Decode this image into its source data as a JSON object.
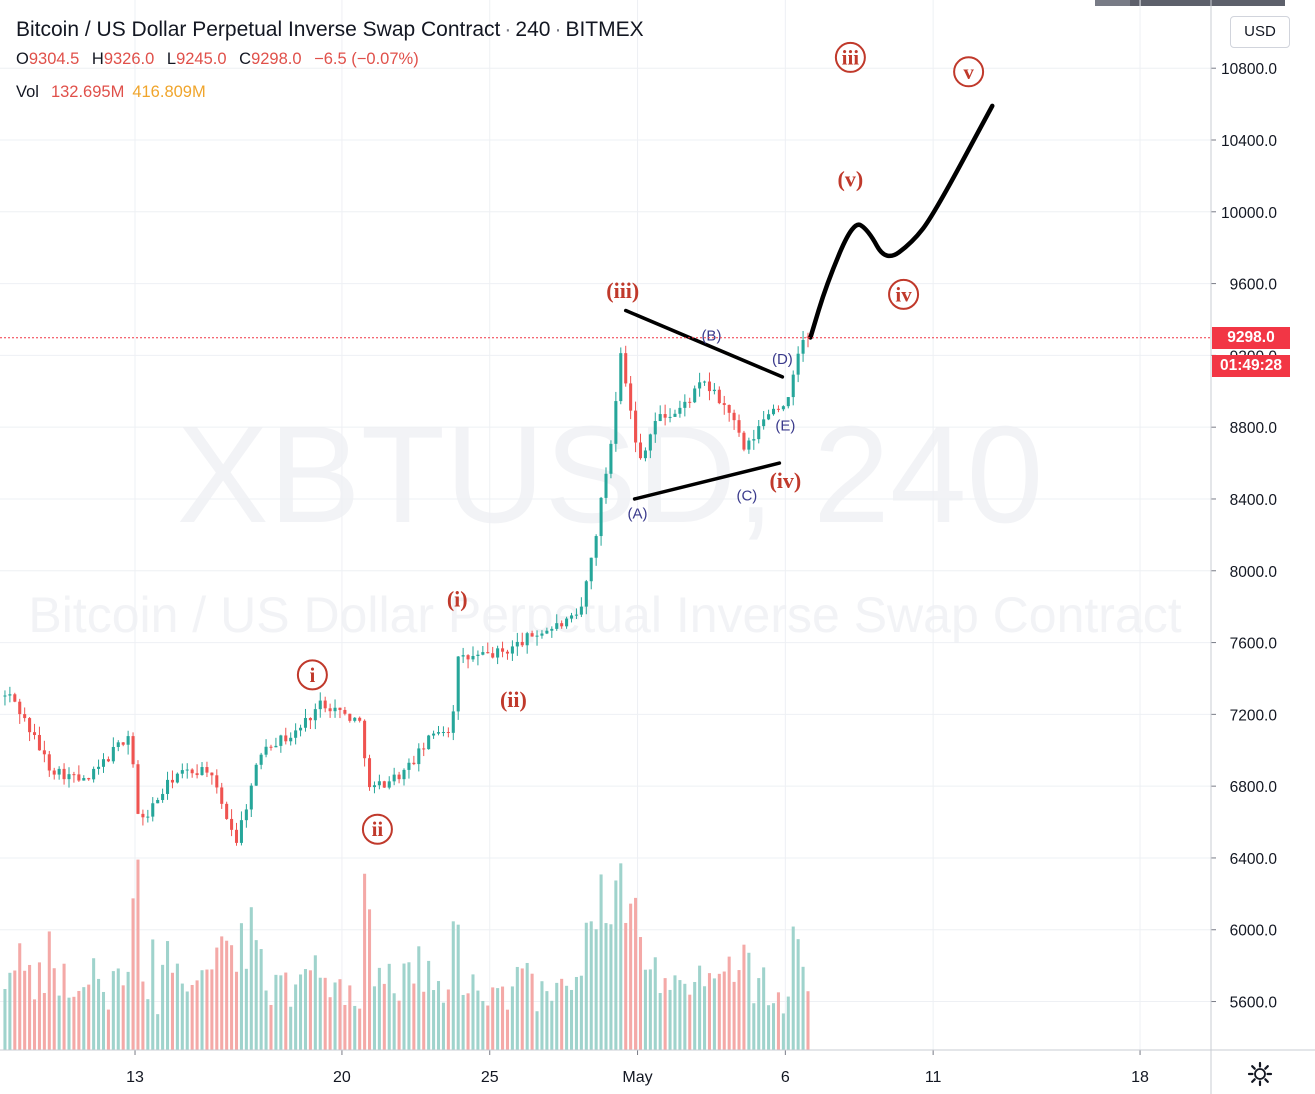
{
  "header": {
    "symbol_name": "Bitcoin / US Dollar Perpetual Inverse Swap Contract",
    "interval": "240",
    "exchange": "BITMEX",
    "ohlc": {
      "open_label": "O",
      "open": "9304.5",
      "high_label": "H",
      "high": "9326.0",
      "low_label": "L",
      "low": "9245.0",
      "close_label": "C",
      "close": "9298.0",
      "change": "−6.5 (−0.07%)"
    },
    "volume": {
      "label": "Vol",
      "value": "132.695M",
      "ma": "416.809M"
    }
  },
  "watermark": {
    "ticker": "XBTUSD, 240",
    "description": "Bitcoin / US Dollar Perpetual Inverse Swap Contract"
  },
  "currency_button": "USD",
  "last_price_label": "9298.0",
  "countdown_label": "01:49:28",
  "colors": {
    "up": "#26a69a",
    "down": "#ef5350",
    "volume_up": "#9fd3cc",
    "volume_down": "#f4a9a7",
    "wave_label": "#c0392b",
    "abc_label": "#3a3a8c",
    "drawing": "#000000",
    "grid": "#eef0f4",
    "price_line": "#f23645"
  },
  "chart_data": {
    "type": "candlestick",
    "title": "Bitcoin / US Dollar Perpetual Inverse Swap Contract · 240 · BITMEX",
    "interval_hours": 4,
    "y_ticks": [
      5600,
      6000,
      6400,
      6800,
      7200,
      7600,
      8000,
      8400,
      8800,
      9200,
      9600,
      10000,
      10400,
      10800
    ],
    "y_range": [
      5330,
      11180
    ],
    "x_tick_labels": [
      {
        "label": "13",
        "day": 13
      },
      {
        "label": "20",
        "day": 20
      },
      {
        "label": "25",
        "day": 25
      },
      {
        "label": "May",
        "day": 30
      },
      {
        "label": "6",
        "day": 35
      },
      {
        "label": "11",
        "day": 40
      },
      {
        "label": "18",
        "day": 47
      }
    ],
    "x_axis_note": "day index: 13 = Apr 13, 30 = May 1, 35 = May 6",
    "last_price": 9298.0,
    "price_anchors": [
      {
        "day": 9.0,
        "price": 7300
      },
      {
        "day": 10.3,
        "price": 6900
      },
      {
        "day": 11.5,
        "price": 6820
      },
      {
        "day": 13.0,
        "price": 7100
      },
      {
        "day": 13.3,
        "price": 6580
      },
      {
        "day": 14.5,
        "price": 6860
      },
      {
        "day": 15.6,
        "price": 6900
      },
      {
        "day": 16.6,
        "price": 6500
      },
      {
        "day": 17.5,
        "price": 7030
      },
      {
        "day": 18.5,
        "price": 7080
      },
      {
        "day": 19.5,
        "price": 7270
      },
      {
        "day": 20.8,
        "price": 7150
      },
      {
        "day": 21.1,
        "price": 6780
      },
      {
        "day": 22.3,
        "price": 6880
      },
      {
        "day": 23.4,
        "price": 7120
      },
      {
        "day": 23.9,
        "price": 7110
      },
      {
        "day": 24.0,
        "price": 7500
      },
      {
        "day": 25.7,
        "price": 7550
      },
      {
        "day": 26.6,
        "price": 7640
      },
      {
        "day": 28.2,
        "price": 7740
      },
      {
        "day": 28.7,
        "price": 8150
      },
      {
        "day": 29.3,
        "price": 8750
      },
      {
        "day": 29.6,
        "price": 9240
      },
      {
        "day": 30.2,
        "price": 8600
      },
      {
        "day": 30.8,
        "price": 8850
      },
      {
        "day": 31.5,
        "price": 8880
      },
      {
        "day": 32.4,
        "price": 9050
      },
      {
        "day": 33.3,
        "price": 8880
      },
      {
        "day": 33.8,
        "price": 8660
      },
      {
        "day": 34.6,
        "price": 8890
      },
      {
        "day": 35.3,
        "price": 8950
      },
      {
        "day": 35.7,
        "price": 9300
      }
    ],
    "volume_axis_max": 21000,
    "volume_notes": "Volume histogram in bottom pane; peaks near Apr 24 (~9400) and Apr 30 (~14000).",
    "projection_path": [
      {
        "day": 35.85,
        "price": 9300
      },
      {
        "day": 36.4,
        "price": 9600
      },
      {
        "day": 37.3,
        "price": 9950
      },
      {
        "day": 37.8,
        "price": 9900
      },
      {
        "day": 38.4,
        "price": 9720
      },
      {
        "day": 39.3,
        "price": 9830
      },
      {
        "day": 40.0,
        "price": 9980
      },
      {
        "day": 42.0,
        "price": 10590
      }
    ],
    "triangle_lines": [
      {
        "from": {
          "day": 29.6,
          "price": 9450
        },
        "to": {
          "day": 34.9,
          "price": 9080
        }
      },
      {
        "from": {
          "day": 29.9,
          "price": 8400
        },
        "to": {
          "day": 34.8,
          "price": 8600
        }
      }
    ],
    "wave_labels": [
      {
        "text": "i",
        "style": "circle",
        "day": 19.0,
        "price": 7420
      },
      {
        "text": "ii",
        "style": "circle",
        "day": 21.2,
        "price": 6560
      },
      {
        "text": "(i)",
        "style": "paren",
        "day": 23.9,
        "price": 7840
      },
      {
        "text": "(ii)",
        "style": "paren",
        "day": 25.8,
        "price": 7280
      },
      {
        "text": "(iii)",
        "style": "paren",
        "day": 29.5,
        "price": 9560
      },
      {
        "text": "(iv)",
        "style": "paren",
        "day": 35.0,
        "price": 8500
      },
      {
        "text": "iii",
        "style": "circle",
        "day": 37.2,
        "price": 10860
      },
      {
        "text": "(v)",
        "style": "paren",
        "day": 37.2,
        "price": 10180
      },
      {
        "text": "iv",
        "style": "circle",
        "day": 39.0,
        "price": 9540
      },
      {
        "text": "v",
        "style": "circle",
        "day": 41.2,
        "price": 10780
      }
    ],
    "abc_labels": [
      {
        "text": "(A)",
        "day": 30.0,
        "price": 8320
      },
      {
        "text": "(B)",
        "day": 32.5,
        "price": 9310
      },
      {
        "text": "(C)",
        "day": 33.7,
        "price": 8420
      },
      {
        "text": "(D)",
        "day": 34.9,
        "price": 9180
      },
      {
        "text": "(E)",
        "day": 35.0,
        "price": 8810
      }
    ]
  }
}
